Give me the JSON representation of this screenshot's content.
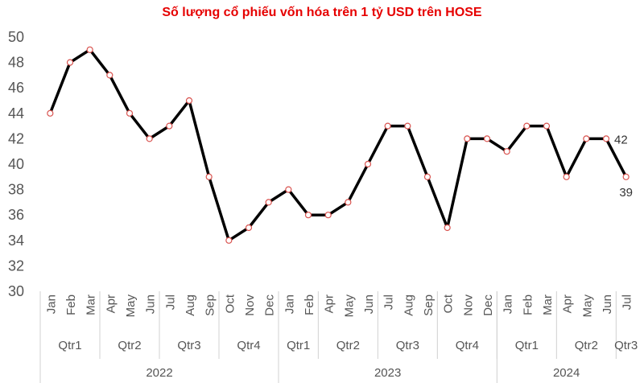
{
  "chart_data": {
    "type": "line",
    "title": "Số lượng cổ phiếu vốn hóa trên 1 tỷ USD trên HOSE",
    "xlabel": "",
    "ylabel": "",
    "ylim": [
      30,
      50
    ],
    "yticks": [
      "30",
      "32",
      "34",
      "36",
      "38",
      "40",
      "42",
      "44",
      "46",
      "48",
      "50"
    ],
    "grid": false,
    "categories": [
      "Jan",
      "Feb",
      "Mar",
      "Apr",
      "May",
      "Jun",
      "Jul",
      "Aug",
      "Sep",
      "Oct",
      "Nov",
      "Dec",
      "Jan",
      "Feb",
      "Apr",
      "May",
      "Jun",
      "Jul",
      "Aug",
      "Sep",
      "Oct",
      "Nov",
      "Dec",
      "Jan",
      "Feb",
      "Mar",
      "Apr",
      "May",
      "Jun",
      "Jul"
    ],
    "quarters": [
      {
        "label": "Qtr1",
        "count": 3
      },
      {
        "label": "Qtr2",
        "count": 3
      },
      {
        "label": "Qtr3",
        "count": 3
      },
      {
        "label": "Qtr4",
        "count": 3
      },
      {
        "label": "Qtr1",
        "count": 2
      },
      {
        "label": "Qtr2",
        "count": 3
      },
      {
        "label": "Qtr3",
        "count": 3
      },
      {
        "label": "Qtr4",
        "count": 3
      },
      {
        "label": "Qtr1",
        "count": 3
      },
      {
        "label": "Qtr2",
        "count": 3
      },
      {
        "label": "Qtr3",
        "count": 1
      }
    ],
    "years": [
      {
        "label": "2022",
        "count": 12
      },
      {
        "label": "2023",
        "count": 11
      },
      {
        "label": "2024",
        "count": 7
      }
    ],
    "series": [
      {
        "values": [
          44,
          48,
          49,
          47,
          44,
          42,
          43,
          45,
          39,
          34,
          35,
          37,
          38,
          36,
          36,
          37,
          40,
          43,
          43,
          39,
          35,
          42,
          42,
          41,
          43,
          43,
          39,
          42,
          42,
          39
        ]
      }
    ],
    "data_labels": [
      {
        "index": 28,
        "text": "42"
      },
      {
        "index": 29,
        "text": "39"
      }
    ],
    "colors": {
      "title": "#e60000",
      "line": "#000000",
      "marker_stroke": "#d9534f",
      "marker_fill": "#ffffff",
      "axis_text": "#555555",
      "separator": "#d0d0d0"
    }
  }
}
